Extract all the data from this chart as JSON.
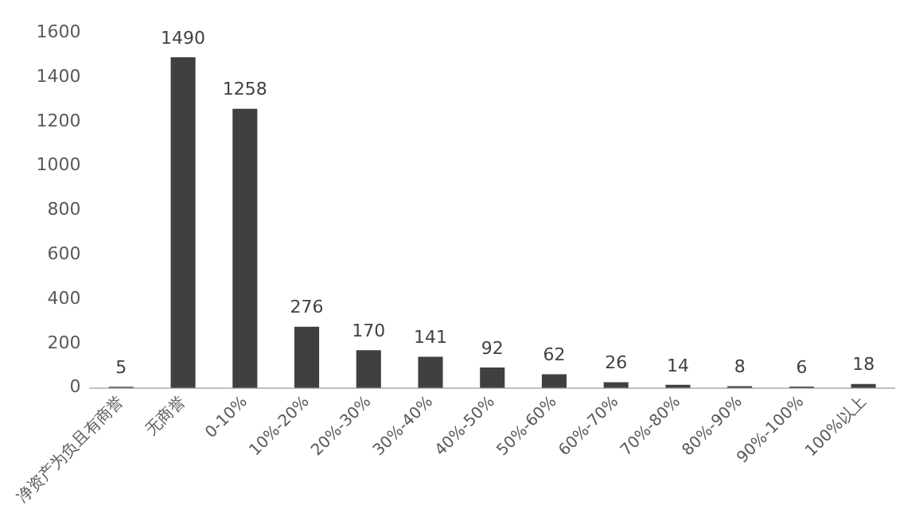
{
  "chart_data": {
    "type": "bar",
    "categories": [
      "净资产为负且有商誉",
      "无商誉",
      "0-10%",
      "10%-20%",
      "20%-30%",
      "30%-40%",
      "40%-50%",
      "50%-60%",
      "60%-70%",
      "70%-80%",
      "80%-90%",
      "90%-100%",
      "100%以上"
    ],
    "values": [
      5,
      1490,
      1258,
      276,
      170,
      141,
      92,
      62,
      26,
      14,
      8,
      6,
      18
    ],
    "color": "#404040",
    "ylim": [
      0,
      1600
    ],
    "yticks": [
      0,
      200,
      400,
      600,
      800,
      1000,
      1200,
      1400,
      1600
    ],
    "data_labels": true
  }
}
